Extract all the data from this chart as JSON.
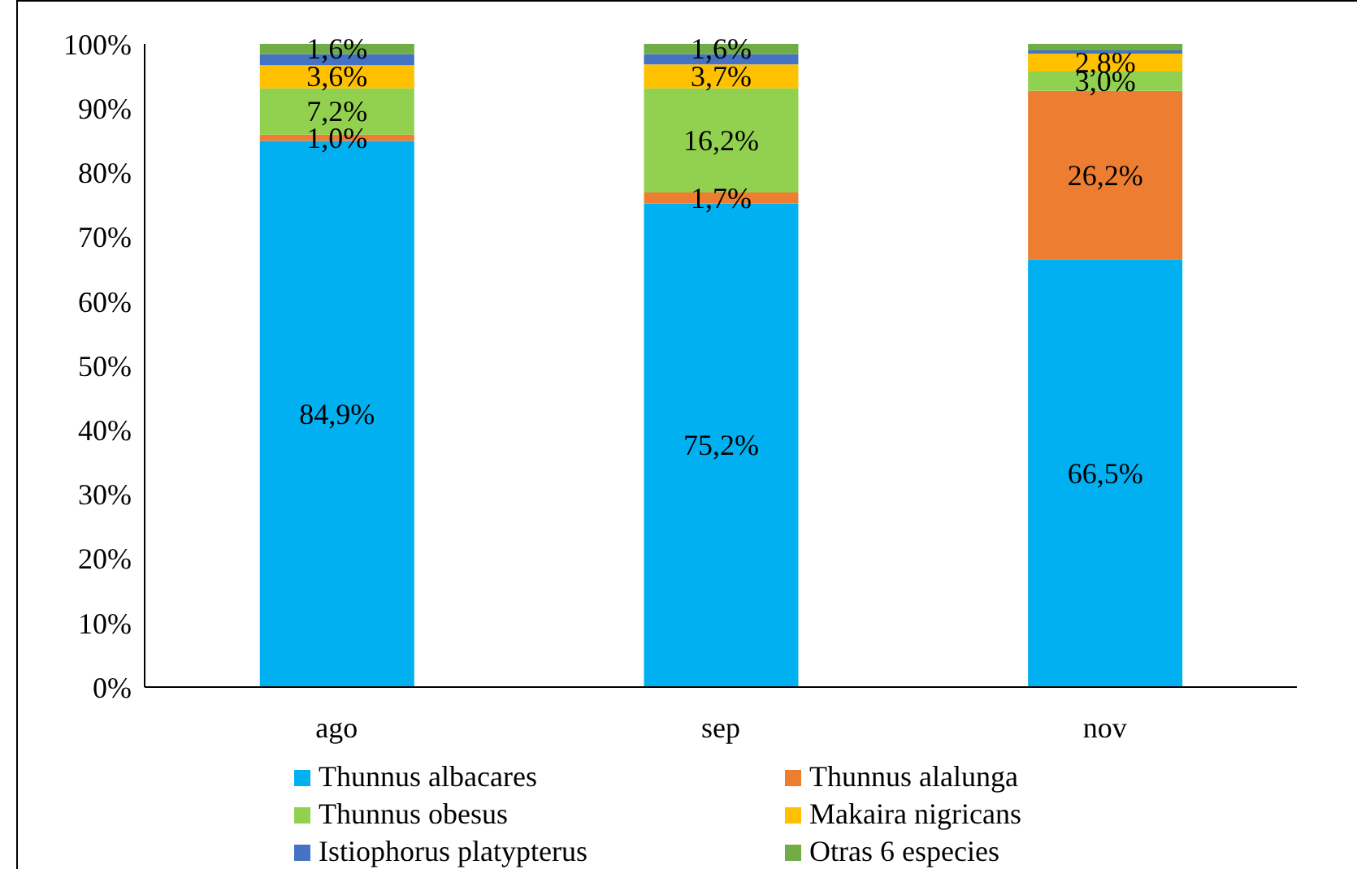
{
  "chart_data": {
    "type": "bar",
    "stacked": true,
    "categories": [
      "ago",
      "sep",
      "nov"
    ],
    "series": [
      {
        "name": "Thunnus albacares",
        "color": "#00b0f0",
        "values": [
          84.9,
          75.2,
          66.5
        ],
        "value_labels": [
          "84,9%",
          "75,2%",
          "66,5%"
        ]
      },
      {
        "name": "Thunnus alalunga",
        "color": "#ed7d31",
        "values": [
          1.0,
          1.7,
          26.2
        ],
        "value_labels": [
          "1,0%",
          "1,7%",
          "26,2%"
        ]
      },
      {
        "name": "Thunnus obesus",
        "color": "#92d050",
        "values": [
          7.2,
          16.2,
          3.0
        ],
        "value_labels": [
          "7,2%",
          "16,2%",
          "3,0%"
        ]
      },
      {
        "name": "Makaira nigricans",
        "color": "#ffc000",
        "values": [
          3.6,
          3.7,
          2.8
        ],
        "value_labels": [
          "3,6%",
          "3,7%",
          "2,8%"
        ]
      },
      {
        "name": "Istiophorus platypterus",
        "color": "#4472c4",
        "values": [
          1.7,
          1.6,
          0.5
        ],
        "value_labels": [
          null,
          null,
          null
        ]
      },
      {
        "name": "Otras 6 especies",
        "color": "#70ad47",
        "values": [
          1.6,
          1.6,
          1.0
        ],
        "value_labels": [
          "1,6%",
          "1,6%",
          null
        ]
      }
    ],
    "ylim": [
      0,
      100
    ],
    "yticks": [
      {
        "value": 0,
        "label": "0%"
      },
      {
        "value": 10,
        "label": "10%"
      },
      {
        "value": 20,
        "label": "20%"
      },
      {
        "value": 30,
        "label": "30%"
      },
      {
        "value": 40,
        "label": "40%"
      },
      {
        "value": 50,
        "label": "50%"
      },
      {
        "value": 60,
        "label": "60%"
      },
      {
        "value": 70,
        "label": "70%"
      },
      {
        "value": 80,
        "label": "80%"
      },
      {
        "value": 90,
        "label": "90%"
      },
      {
        "value": 100,
        "label": "100%"
      }
    ],
    "grid": false,
    "legend": "bottom"
  }
}
